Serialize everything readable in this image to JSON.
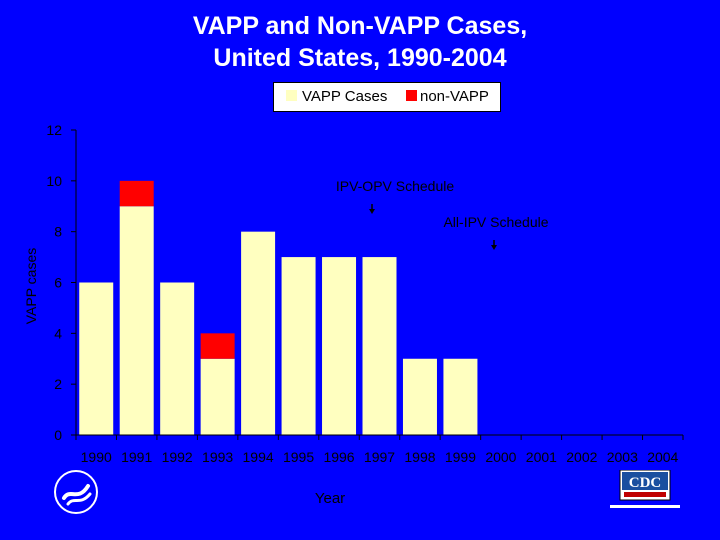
{
  "title_line1": "VAPP  and Non-VAPP Cases,",
  "title_line2": "United States, 1990-2004",
  "legend": [
    {
      "label": "VAPP Cases",
      "color": "#ffffc0"
    },
    {
      "label": "non-VAPP",
      "color": "#ff0000"
    }
  ],
  "annotations": {
    "ipv_opv": "IPV-OPV Schedule",
    "all_ipv": "All-IPV Schedule"
  },
  "logos": {
    "cdc": "CDC"
  },
  "chart_data": {
    "type": "bar",
    "stacked": true,
    "title": "VAPP  and Non-VAPP Cases, United States, 1990-2004",
    "xlabel": "Year",
    "ylabel": "VAPP cases",
    "ylim": [
      0,
      12
    ],
    "yticks": [
      0,
      2,
      4,
      6,
      8,
      10,
      12
    ],
    "categories": [
      "1990",
      "1991",
      "1992",
      "1993",
      "1994",
      "1995",
      "1996",
      "1997",
      "1998",
      "1999",
      "2000",
      "2001",
      "2002",
      "2003",
      "2004"
    ],
    "series": [
      {
        "name": "VAPP Cases",
        "color": "#ffffc0",
        "values": [
          6,
          9,
          6,
          3,
          8,
          7,
          7,
          7,
          3,
          3,
          0,
          0,
          0,
          0,
          0
        ]
      },
      {
        "name": "non-VAPP",
        "color": "#ff0000",
        "values": [
          0,
          1,
          0,
          1,
          0,
          0,
          0,
          0,
          0,
          0,
          0,
          0,
          0,
          0,
          0
        ]
      }
    ],
    "legend_position": "top",
    "grid": false
  }
}
